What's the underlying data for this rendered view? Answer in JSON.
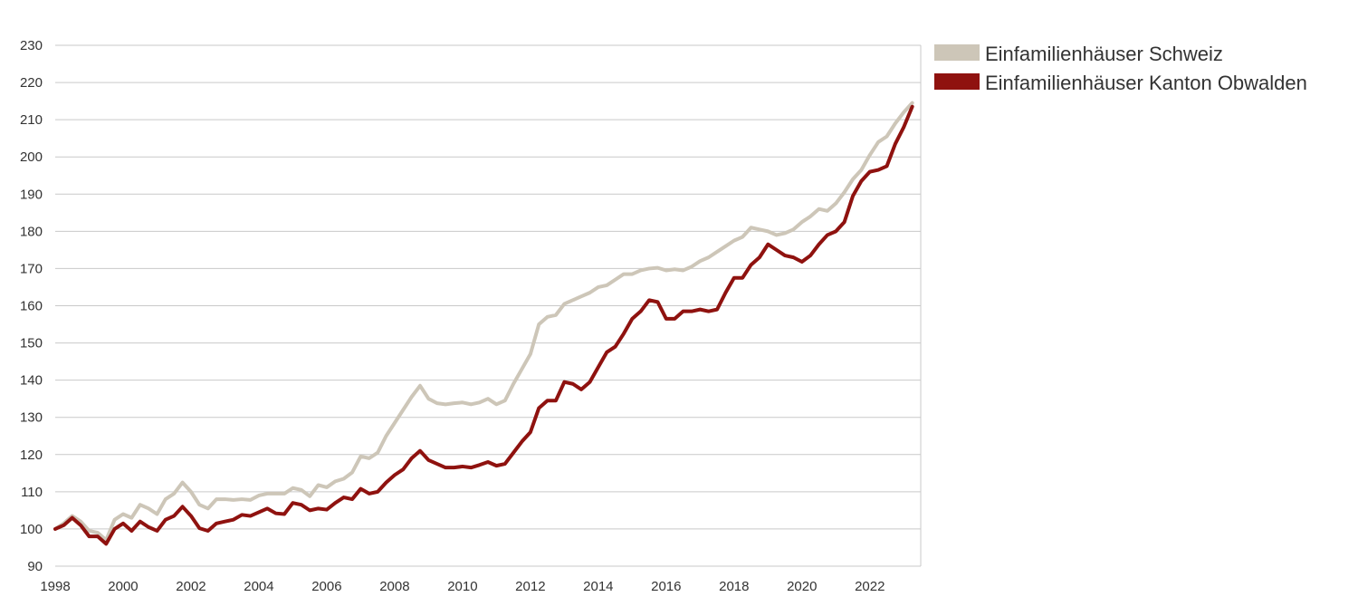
{
  "chart_data": {
    "type": "line",
    "title": "",
    "xlabel": "",
    "ylabel": "",
    "xlim": [
      1998,
      2023.5
    ],
    "ylim": [
      90,
      230
    ],
    "y_ticks": [
      90,
      100,
      110,
      120,
      130,
      140,
      150,
      160,
      170,
      180,
      190,
      200,
      210,
      220,
      230
    ],
    "x_ticks": [
      1998,
      2000,
      2002,
      2004,
      2006,
      2008,
      2010,
      2012,
      2014,
      2016,
      2018,
      2020,
      2022
    ],
    "grid": "horizontal",
    "legend_position": "top-right",
    "series": [
      {
        "name": "Einfamilienhäuser Schweiz",
        "color": "#cdc6b8",
        "x": [
          1998,
          1998.25,
          1998.5,
          1998.75,
          1999,
          1999.25,
          1999.5,
          1999.75,
          2000,
          2000.25,
          2000.5,
          2000.75,
          2001,
          2001.25,
          2001.5,
          2001.75,
          2002,
          2002.25,
          2002.5,
          2002.75,
          2003,
          2003.25,
          2003.5,
          2003.75,
          2004,
          2004.25,
          2004.5,
          2004.75,
          2005,
          2005.25,
          2005.5,
          2005.75,
          2006,
          2006.25,
          2006.5,
          2006.75,
          2007,
          2007.25,
          2007.5,
          2007.75,
          2008,
          2008.25,
          2008.5,
          2008.75,
          2009,
          2009.25,
          2009.5,
          2009.75,
          2010,
          2010.25,
          2010.5,
          2010.75,
          2011,
          2011.25,
          2011.5,
          2011.75,
          2012,
          2012.25,
          2012.5,
          2012.75,
          2013,
          2013.25,
          2013.5,
          2013.75,
          2014,
          2014.25,
          2014.5,
          2014.75,
          2015,
          2015.25,
          2015.5,
          2015.75,
          2016,
          2016.25,
          2016.5,
          2016.75,
          2017,
          2017.25,
          2017.5,
          2017.75,
          2018,
          2018.25,
          2018.5,
          2018.75,
          2019,
          2019.25,
          2019.5,
          2019.75,
          2020,
          2020.25,
          2020.5,
          2020.75,
          2021,
          2021.25,
          2021.5,
          2021.75,
          2022,
          2022.25,
          2022.5,
          2022.75,
          2023,
          2023.25
        ],
        "values": [
          100,
          101.5,
          103.5,
          102,
          99.5,
          99,
          97,
          102.5,
          104,
          103,
          106.5,
          105.5,
          104,
          108,
          109.5,
          112.5,
          110,
          106.5,
          105.5,
          108,
          108,
          107.8,
          108,
          107.8,
          109,
          109.5,
          109.5,
          109.5,
          111,
          110.5,
          108.8,
          111.8,
          111.2,
          112.8,
          113.5,
          115.2,
          119.5,
          119,
          120.5,
          125,
          128.5,
          132,
          135.5,
          138.5,
          135,
          133.8,
          133.5,
          133.8,
          134,
          133.5,
          134,
          135,
          133.5,
          134.5,
          139,
          143,
          147,
          155,
          157,
          157.5,
          160.5,
          161.5,
          162.5,
          163.5,
          165,
          165.5,
          167,
          168.5,
          168.5,
          169.5,
          170,
          170.2,
          169.5,
          169.8,
          169.5,
          170.5,
          172,
          173,
          174.5,
          176,
          177.5,
          178.5,
          181,
          180.5,
          180,
          179,
          179.5,
          180.5,
          182.5,
          184,
          186,
          185.5,
          187.5,
          190.5,
          194,
          196.5,
          200.5,
          204,
          205.5,
          209,
          212,
          214.5
        ]
      },
      {
        "name": "Einfamilienhäuser Kanton Obwalden",
        "color": "#8f120f",
        "x": [
          1998,
          1998.25,
          1998.5,
          1998.75,
          1999,
          1999.25,
          1999.5,
          1999.75,
          2000,
          2000.25,
          2000.5,
          2000.75,
          2001,
          2001.25,
          2001.5,
          2001.75,
          2002,
          2002.25,
          2002.5,
          2002.75,
          2003,
          2003.25,
          2003.5,
          2003.75,
          2004,
          2004.25,
          2004.5,
          2004.75,
          2005,
          2005.25,
          2005.5,
          2005.75,
          2006,
          2006.25,
          2006.5,
          2006.75,
          2007,
          2007.25,
          2007.5,
          2007.75,
          2008,
          2008.25,
          2008.5,
          2008.75,
          2009,
          2009.25,
          2009.5,
          2009.75,
          2010,
          2010.25,
          2010.5,
          2010.75,
          2011,
          2011.25,
          2011.5,
          2011.75,
          2012,
          2012.25,
          2012.5,
          2012.75,
          2013,
          2013.25,
          2013.5,
          2013.75,
          2014,
          2014.25,
          2014.5,
          2014.75,
          2015,
          2015.25,
          2015.5,
          2015.75,
          2016,
          2016.25,
          2016.5,
          2016.75,
          2017,
          2017.25,
          2017.5,
          2017.75,
          2018,
          2018.25,
          2018.5,
          2018.75,
          2019,
          2019.25,
          2019.5,
          2019.75,
          2020,
          2020.25,
          2020.5,
          2020.75,
          2021,
          2021.25,
          2021.5,
          2021.75,
          2022,
          2022.25,
          2022.5,
          2022.75,
          2023,
          2023.25
        ],
        "values": [
          100,
          101,
          103,
          101,
          98,
          98,
          96,
          100,
          101.5,
          99.5,
          102,
          100.5,
          99.5,
          102.5,
          103.5,
          106,
          103.5,
          100.2,
          99.5,
          101.5,
          102,
          102.5,
          103.8,
          103.5,
          104.5,
          105.5,
          104.2,
          104,
          107,
          106.5,
          105,
          105.5,
          105.2,
          107,
          108.5,
          108,
          110.8,
          109.5,
          110,
          112.5,
          114.5,
          116,
          119,
          121,
          118.5,
          117.5,
          116.5,
          116.5,
          116.8,
          116.5,
          117.2,
          118,
          117,
          117.5,
          120.5,
          123.5,
          126,
          132.5,
          134.5,
          134.5,
          139.5,
          139,
          137.5,
          139.5,
          143.5,
          147.5,
          149,
          152.5,
          156.5,
          158.5,
          161.5,
          161,
          156.5,
          156.5,
          158.5,
          158.5,
          159,
          158.5,
          159,
          163.5,
          167.5,
          167.5,
          171,
          173,
          176.5,
          175,
          173.5,
          173,
          171.8,
          173.5,
          176.5,
          179,
          180,
          182.5,
          189.5,
          193.5,
          196,
          196.5,
          197.5,
          203.5,
          208,
          213.5
        ]
      }
    ]
  }
}
